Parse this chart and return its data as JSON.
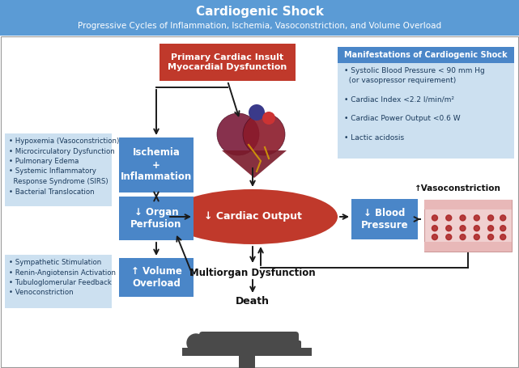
{
  "title": "Cardiogenic Shock",
  "subtitle": "Progressive Cycles of Inflammation, Ischemia, Vasoconstriction, and Volume Overload",
  "header_bg": "#5b9bd5",
  "header_text_color": "white",
  "box_blue_bg": "#4a86c8",
  "box_blue_text": "white",
  "box_red_bg": "#c0392b",
  "box_red_text": "white",
  "ellipse_red_bg": "#c0392b",
  "ellipse_red_text": "white",
  "light_blue_bg": "#cce0f0",
  "light_blue_text": "#1a3a5c",
  "arrow_color": "#1a1a1a",
  "body_text_color": "#111111",
  "bg_color": "#ffffff",
  "primary_insult_text": "Primary Cardiac Insult\nMyocardial Dysfunction",
  "ischemia_text": "Ischemia\n+\nInflammation",
  "organ_perfusion_text": "↓ Organ\nPerfusion",
  "volume_overload_text": "↑ Volume\nOverload",
  "cardiac_output_text": "↓ Cardiac Output",
  "blood_pressure_text": "↓ Blood\nPressure",
  "vasoconstriction_text": "↑Vasoconstriction",
  "multiorgan_text": "Multiorgan Dysfunction",
  "death_text": "Death",
  "left_top_bullets": "• Hypoxemia (Vasoconstriction)\n• Microcirculatory Dysfunction\n• Pulmonary Edema\n• Systemic Inflammatory\n  Response Syndrome (SIRS)\n• Bacterial Translocation",
  "left_bottom_bullets": "• Sympathetic Stimulation\n• Renin-Angiotensin Activation\n• Tubuloglomerular Feedback\n• Venoconstriction",
  "manifestations_title": "Manifestations of Cardiogenic Shock",
  "manifestations_bullets": "• Systolic Blood Pressure < 90 mm Hg\n  (or vasopressor requirement)\n\n• Cardiac Index <2.2 l/min/m²\n\n• Cardiac Power Output <0.6 W\n\n• Lactic acidosis"
}
